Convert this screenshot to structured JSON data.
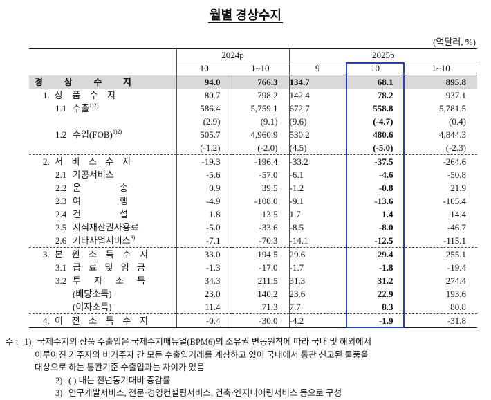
{
  "header": {
    "title": "월별 경상수지",
    "unit": "(억달러, %)"
  },
  "table": {
    "groups": [
      {
        "label": "2024p",
        "columns": [
          "10",
          "1~10"
        ]
      },
      {
        "label": "2025p",
        "columns": [
          "9",
          "10",
          "1~10"
        ]
      }
    ],
    "rows": [
      {
        "label": "경 상 수 지",
        "cells": [
          "94.0",
          "766.3",
          "134.7",
          "68.1",
          "895.8"
        ]
      },
      {
        "num": "1.",
        "label": "상 품 수 지",
        "cells": [
          "80.7",
          "798.2",
          "142.4",
          "78.2",
          "937.1"
        ]
      },
      {
        "num": "1.1",
        "label": "수출",
        "note": "1)2)",
        "cells": [
          "586.4",
          "5,759.1",
          "672.7",
          "558.8",
          "5,781.5"
        ]
      },
      {
        "cells": [
          "(2.9)",
          "(9.1)",
          "(9.6)",
          "(-4.7)",
          "(0.4)"
        ]
      },
      {
        "num": "1.2",
        "label": "수입(FOB)",
        "note": "1)2)",
        "cells": [
          "505.7",
          "4,960.9",
          "530.2",
          "480.6",
          "4,844.3"
        ]
      },
      {
        "cells": [
          "(-1.2)",
          "(-2.0)",
          "(4.5)",
          "(-5.0)",
          "(-2.3)"
        ]
      },
      {
        "num": "2.",
        "label": "서 비 스 수 지",
        "cells": [
          "-19.3",
          "-196.4",
          "-33.2",
          "-37.5",
          "-264.6"
        ]
      },
      {
        "num": "2.1",
        "label": "가공서비스",
        "cells": [
          "-5.6",
          "-57.0",
          "-6.1",
          "-4.6",
          "-50.8"
        ]
      },
      {
        "num": "2.2",
        "label": "운 송",
        "cells": [
          "0.9",
          "39.5",
          "-1.2",
          "-0.8",
          "21.9"
        ]
      },
      {
        "num": "2.3",
        "label": "여 행",
        "cells": [
          "-4.9",
          "-108.0",
          "-9.1",
          "-13.6",
          "-105.4"
        ]
      },
      {
        "num": "2.4",
        "label": "건 설",
        "cells": [
          "1.8",
          "13.5",
          "1.7",
          "1.4",
          "14.4"
        ]
      },
      {
        "num": "2.5",
        "label": "지식재산권사용료",
        "cells": [
          "-5.0",
          "-33.6",
          "-8.5",
          "-8.0",
          "-46.7"
        ]
      },
      {
        "num": "2.6",
        "label": "기타사업서비스",
        "note": "3)",
        "cells": [
          "-7.1",
          "-70.3",
          "-14.1",
          "-12.5",
          "-115.1"
        ]
      },
      {
        "num": "3.",
        "label": "본 원 소 득 수 지",
        "cells": [
          "33.0",
          "194.5",
          "29.6",
          "29.4",
          "255.1"
        ]
      },
      {
        "num": "3.1",
        "label": "급 료 및 임 금",
        "cells": [
          "-1.3",
          "-17.0",
          "-1.7",
          "-1.8",
          "-19.4"
        ]
      },
      {
        "num": "3.2",
        "label": "투 자 소 득",
        "cells": [
          "34.3",
          "211.5",
          "31.3",
          "31.2",
          "274.4"
        ]
      },
      {
        "label": "(배당소득)",
        "cells": [
          "23.0",
          "140.2",
          "23.6",
          "22.9",
          "193.6"
        ]
      },
      {
        "label": "(이자소득)",
        "cells": [
          "11.4",
          "71.3",
          "7.7",
          "8.3",
          "80.8"
        ]
      },
      {
        "num": "4.",
        "label": "이 전 소 득 수 지",
        "cells": [
          "-0.4",
          "-30.0",
          "-4.2",
          "-1.9",
          "-31.8"
        ]
      }
    ]
  },
  "notes": {
    "prefix": "주 :",
    "items": [
      {
        "marker": "1)",
        "lines": [
          "국제수지의 상품 수출입은 국제수지매뉴얼(BPM6)의 소유권 변동원칙에 따라 국내 및 해외에서",
          "이루어진 거주자와 비거주자 간 모든 수출입거래를 계상하고 있어 국내에서 통관 신고된 물품을",
          "대상으로 하는 통관기준 수출입과는 차이가 있음"
        ]
      },
      {
        "marker": "2)",
        "lines": [
          "( ) 내는 전년동기대비 증감률"
        ]
      },
      {
        "marker": "3)",
        "lines": [
          "연구개발서비스, 전문·경영컨설팅서비스, 건축·엔지니어링서비스 등으로 구성"
        ]
      }
    ]
  }
}
